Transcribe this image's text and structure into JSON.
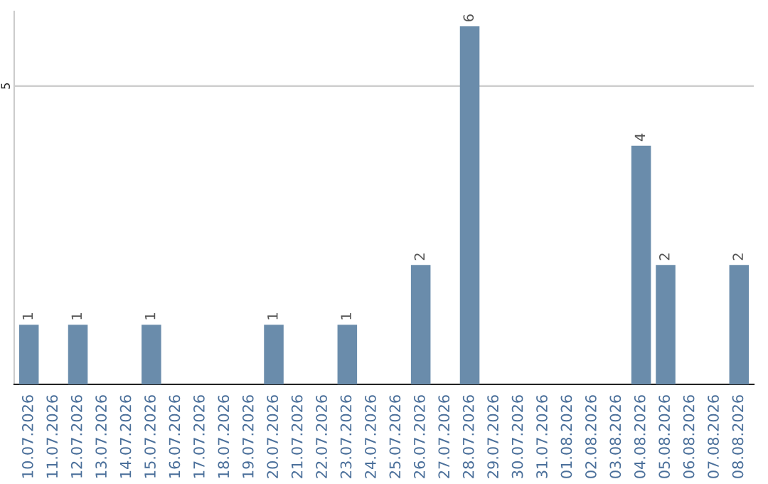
{
  "chart_data": {
    "type": "bar",
    "categories": [
      "10.07.2026",
      "11.07.2026",
      "12.07.2026",
      "13.07.2026",
      "14.07.2026",
      "15.07.2026",
      "16.07.2026",
      "17.07.2026",
      "18.07.2026",
      "19.07.2026",
      "20.07.2026",
      "21.07.2026",
      "22.07.2026",
      "23.07.2026",
      "24.07.2026",
      "25.07.2026",
      "26.07.2026",
      "27.07.2026",
      "28.07.2026",
      "29.07.2026",
      "30.07.2026",
      "31.07.2026",
      "01.08.2026",
      "02.08.2026",
      "03.08.2026",
      "04.08.2026",
      "05.08.2026",
      "06.08.2026",
      "07.08.2026",
      "08.08.2026"
    ],
    "values": [
      1,
      0,
      1,
      0,
      0,
      1,
      0,
      0,
      0,
      0,
      1,
      0,
      0,
      1,
      0,
      0,
      2,
      0,
      6,
      0,
      0,
      0,
      0,
      0,
      0,
      4,
      2,
      0,
      0,
      2
    ],
    "value_labels": [
      "1",
      null,
      "1",
      null,
      null,
      "1",
      null,
      null,
      null,
      null,
      "1",
      null,
      null,
      "1",
      null,
      null,
      "2",
      null,
      "6",
      null,
      null,
      null,
      null,
      null,
      null,
      "4",
      "2",
      null,
      null,
      "2"
    ],
    "color": "#6a8cab",
    "ylim": [
      0,
      6.25
    ],
    "yticks": [
      5
    ],
    "grid": "y"
  }
}
